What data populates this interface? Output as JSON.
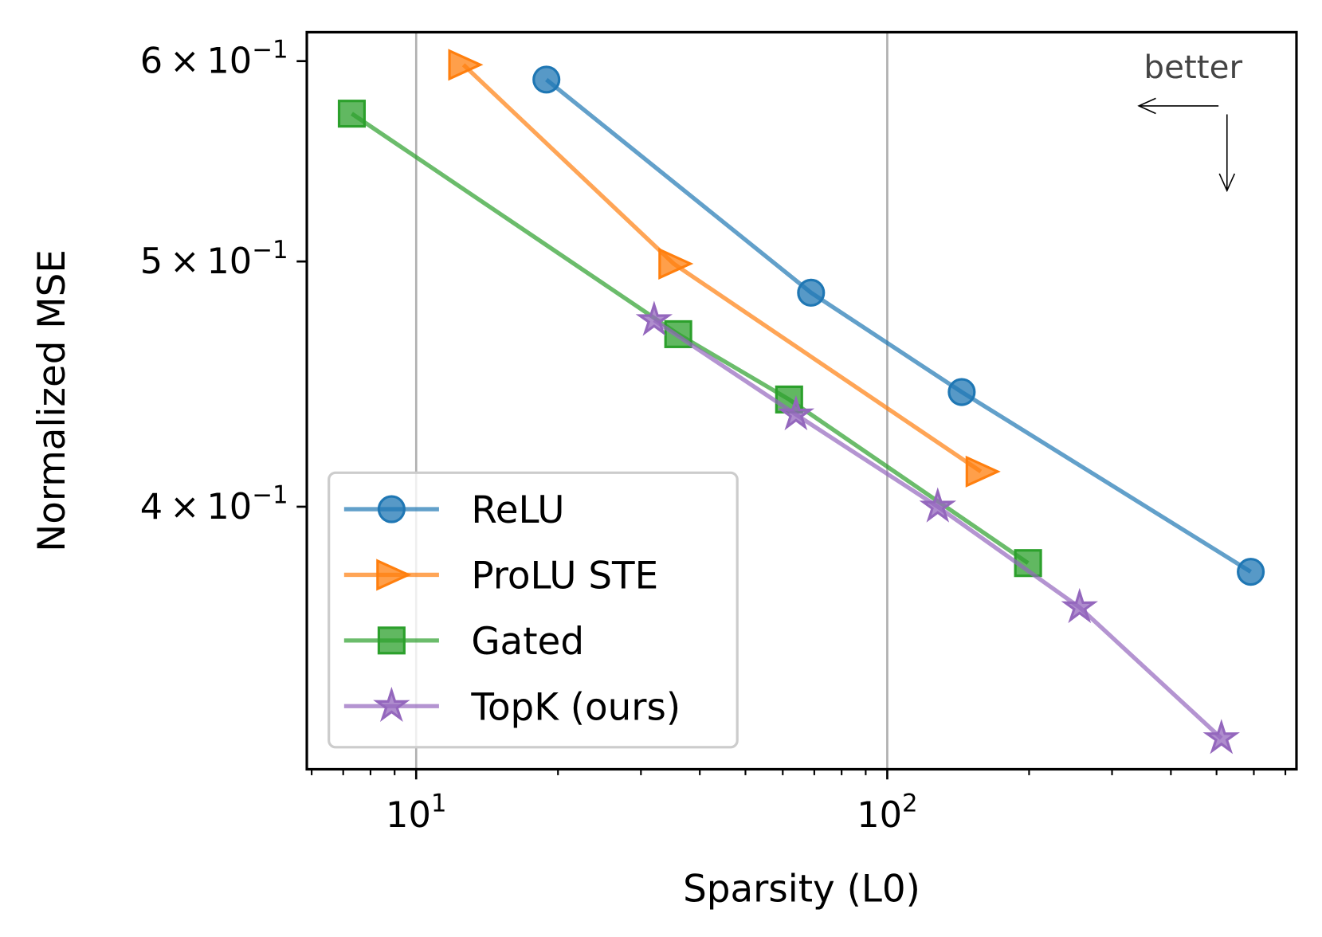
{
  "chart_data": {
    "type": "line",
    "xlabel": "Sparsity (L0)",
    "ylabel": "Normalized MSE",
    "xscale": "log",
    "yscale": "log",
    "xlim": [
      5.86,
      739
    ],
    "ylim": [
      0.315,
      0.616
    ],
    "x_ticks": [
      {
        "value": 10,
        "base": "10",
        "exp": "1"
      },
      {
        "value": 100,
        "base": "10",
        "exp": "2"
      }
    ],
    "y_ticks": [
      {
        "value": 0.6,
        "mant": "6",
        "base": "10",
        "exp": "−1"
      },
      {
        "value": 0.5,
        "mant": "5",
        "base": "10",
        "exp": "−1"
      },
      {
        "value": 0.4,
        "mant": "4",
        "base": "10",
        "exp": "−1"
      }
    ],
    "grid": "vertical major lines",
    "legend_position": "lower-left",
    "annotation": "better",
    "series": [
      {
        "name": "ReLU",
        "color": "#1f77b4",
        "marker": "circle",
        "x": [
          18.9,
          68.9,
          143.9,
          591
        ],
        "y": [
          0.59,
          0.486,
          0.444,
          0.377
        ]
      },
      {
        "name": "ProLU STE",
        "color": "#ff7f0e",
        "marker": "triangle-right",
        "x": [
          12.6,
          35.2,
          158
        ],
        "y": [
          0.598,
          0.499,
          0.413
        ]
      },
      {
        "name": "Gated",
        "color": "#2ca02c",
        "marker": "square",
        "x": [
          7.3,
          36.0,
          61.9,
          199
        ],
        "y": [
          0.572,
          0.468,
          0.441,
          0.38
        ]
      },
      {
        "name": "TopK (ours)",
        "color": "#9467bd",
        "marker": "star",
        "x": [
          32,
          64,
          128,
          256,
          512
        ],
        "y": [
          0.474,
          0.435,
          0.4,
          0.365,
          0.324
        ]
      }
    ]
  }
}
